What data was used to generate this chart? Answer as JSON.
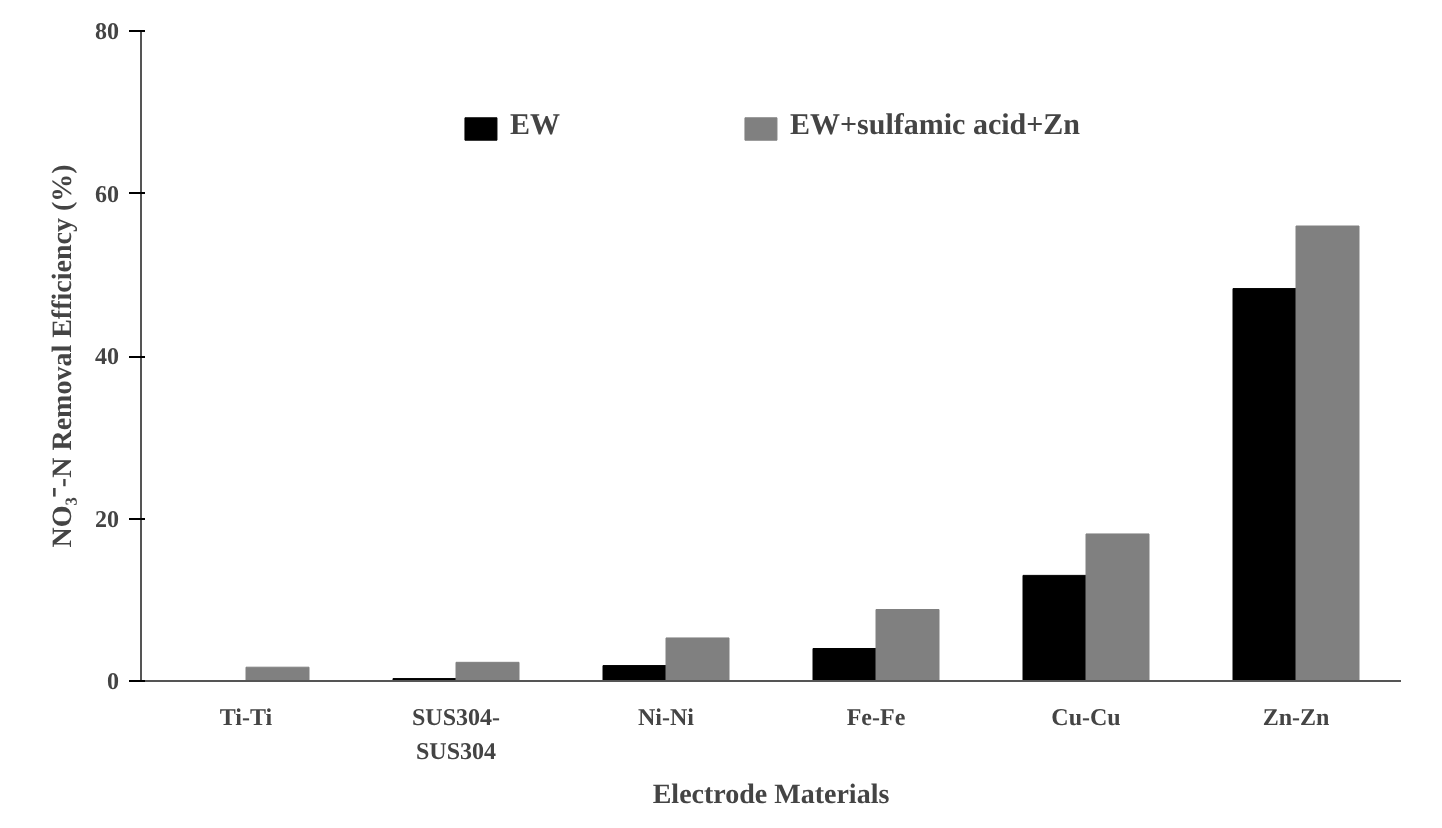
{
  "chart_data": {
    "type": "bar",
    "xlabel": "Electrode Materials",
    "ylabel": "NO₃⁻-N Removal Efficiency (%)",
    "categories": [
      "Ti-Ti",
      "SUS304-\nSUS304",
      "Ni-Ni",
      "Fe-Fe",
      "Cu-Cu",
      "Zn-Zn"
    ],
    "series": [
      {
        "name": "EW",
        "color": "#000000",
        "values": [
          0,
          0.3,
          1.9,
          4.0,
          13.0,
          48.3
        ]
      },
      {
        "name": "EW+sulfamic acid+Zn",
        "color": "#808080",
        "values": [
          1.7,
          2.3,
          5.3,
          8.8,
          18.1,
          56.0
        ]
      }
    ],
    "ylim": [
      0,
      80
    ],
    "yticks": [
      0,
      20,
      40,
      60,
      80
    ],
    "grid": false,
    "legend": "top"
  }
}
